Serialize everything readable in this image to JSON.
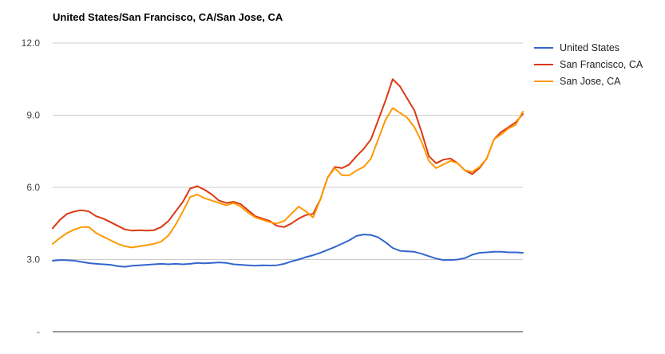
{
  "chart_data": {
    "type": "line",
    "title": "United States/San Francisco, CA/San Jose, CA",
    "xlabel": "",
    "ylabel": "",
    "ylim": [
      0,
      12
    ],
    "yticks": [
      {
        "value": 12,
        "label": "12.0"
      },
      {
        "value": 9,
        "label": "9.0"
      },
      {
        "value": 6,
        "label": "6.0"
      },
      {
        "value": 3,
        "label": "3.0"
      },
      {
        "value": 0,
        "label": "-"
      }
    ],
    "grid": true,
    "legend": "right",
    "x": [
      0,
      3,
      6,
      9,
      12,
      15,
      18,
      21,
      24,
      27,
      30,
      33,
      36,
      39,
      42,
      45,
      48,
      51,
      54,
      57,
      60,
      63,
      66,
      69,
      72,
      75,
      78,
      81,
      84,
      87,
      90,
      93,
      96,
      99,
      102,
      105,
      108,
      111,
      114,
      117,
      120,
      123,
      126,
      129,
      132,
      135,
      138,
      141,
      144,
      147,
      150,
      153,
      156,
      159,
      162,
      165,
      168,
      171,
      174,
      177,
      180,
      183,
      186,
      189,
      192,
      195
    ],
    "series": [
      {
        "name": "United States",
        "color": "#3366cc",
        "values": [
          2.95,
          2.98,
          2.97,
          2.95,
          2.9,
          2.85,
          2.82,
          2.8,
          2.78,
          2.72,
          2.7,
          2.74,
          2.76,
          2.78,
          2.8,
          2.82,
          2.8,
          2.82,
          2.8,
          2.82,
          2.86,
          2.84,
          2.86,
          2.88,
          2.86,
          2.8,
          2.78,
          2.76,
          2.74,
          2.76,
          2.75,
          2.76,
          2.82,
          2.92,
          3.0,
          3.1,
          3.18,
          3.28,
          3.4,
          3.52,
          3.66,
          3.8,
          3.98,
          4.04,
          4.02,
          3.92,
          3.72,
          3.48,
          3.36,
          3.34,
          3.32,
          3.24,
          3.14,
          3.04,
          2.98,
          2.98,
          3.0,
          3.06,
          3.2,
          3.28,
          3.3,
          3.32,
          3.32,
          3.3,
          3.3,
          3.28
        ]
      },
      {
        "name": "San Francisco, CA",
        "color": "#dc3912",
        "values": [
          4.3,
          4.65,
          4.9,
          5.0,
          5.05,
          5.0,
          4.8,
          4.7,
          4.55,
          4.4,
          4.25,
          4.2,
          4.22,
          4.2,
          4.22,
          4.35,
          4.6,
          5.0,
          5.4,
          5.95,
          6.05,
          5.9,
          5.7,
          5.45,
          5.35,
          5.4,
          5.3,
          5.05,
          4.8,
          4.7,
          4.6,
          4.4,
          4.35,
          4.5,
          4.7,
          4.85,
          4.9,
          5.5,
          6.4,
          6.85,
          6.8,
          6.95,
          7.3,
          7.6,
          8.0,
          8.8,
          9.6,
          10.5,
          10.2,
          9.7,
          9.2,
          8.3,
          7.3,
          7.0,
          7.15,
          7.2,
          7.0,
          6.7,
          6.55,
          6.8,
          7.2,
          8.0,
          8.3,
          8.5,
          8.7,
          9.05
        ]
      },
      {
        "name": "San Jose, CA",
        "color": "#ff9900",
        "values": [
          3.65,
          3.9,
          4.1,
          4.25,
          4.35,
          4.35,
          4.1,
          3.95,
          3.8,
          3.65,
          3.55,
          3.5,
          3.55,
          3.6,
          3.65,
          3.75,
          4.0,
          4.45,
          5.0,
          5.6,
          5.7,
          5.55,
          5.45,
          5.35,
          5.25,
          5.35,
          5.2,
          4.95,
          4.75,
          4.65,
          4.55,
          4.5,
          4.6,
          4.9,
          5.2,
          5.0,
          4.75,
          5.5,
          6.4,
          6.8,
          6.5,
          6.5,
          6.7,
          6.85,
          7.2,
          8.0,
          8.8,
          9.3,
          9.1,
          8.9,
          8.5,
          7.9,
          7.1,
          6.8,
          6.95,
          7.1,
          7.0,
          6.7,
          6.65,
          6.85,
          7.2,
          8.0,
          8.2,
          8.45,
          8.6,
          9.15
        ]
      }
    ]
  }
}
